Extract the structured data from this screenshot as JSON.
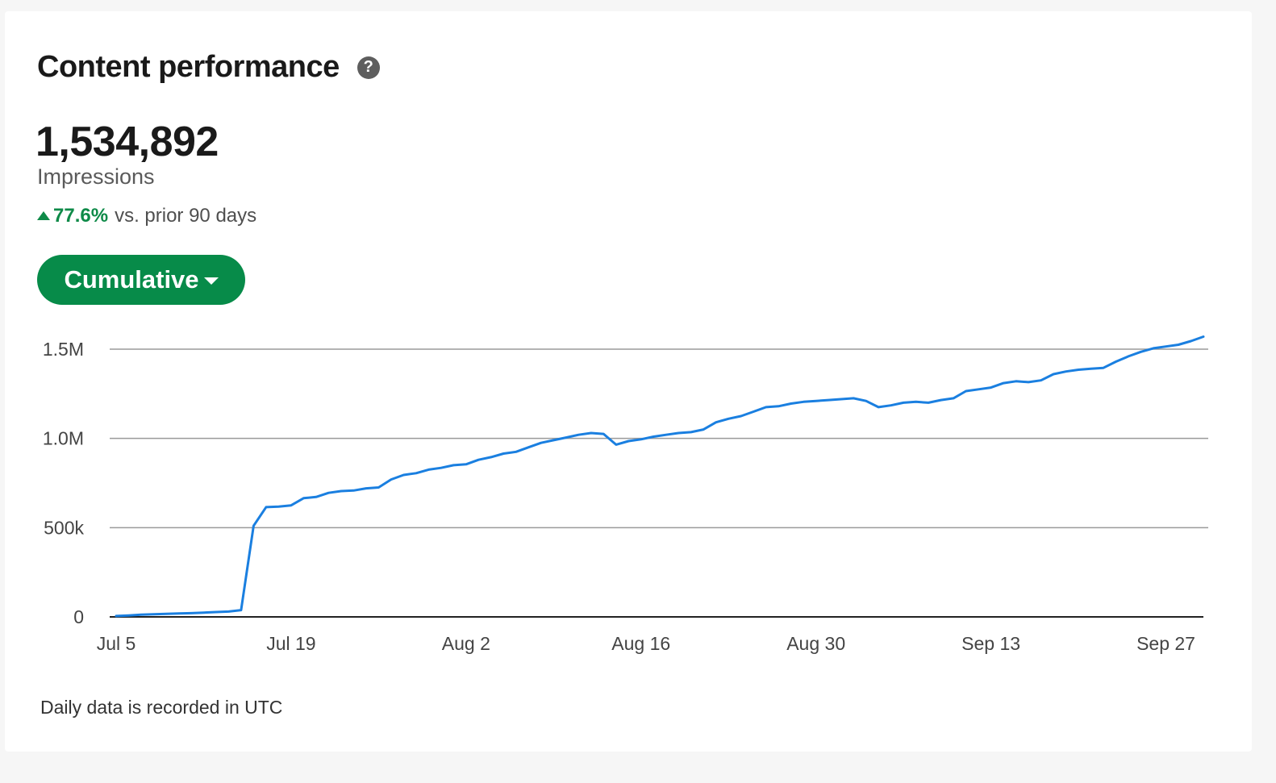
{
  "header": {
    "title": "Content performance",
    "help_glyph": "?"
  },
  "metric": {
    "value": "1,534,892",
    "label": "Impressions",
    "change_value": "77.6%",
    "change_text": "vs. prior 90 days"
  },
  "dropdown": {
    "label": "Cumulative"
  },
  "footnote": "Daily data is recorded in UTC",
  "colors": {
    "accent": "#078b49",
    "positive": "#0e8a48",
    "line": "#1a7fe0",
    "grid": "#9a9a9a"
  },
  "chart_data": {
    "type": "line",
    "title": "",
    "xlabel": "",
    "ylabel": "",
    "ylim": [
      0,
      1500000
    ],
    "yticks": [
      {
        "value": 0,
        "label": "0"
      },
      {
        "value": 500000,
        "label": "500k"
      },
      {
        "value": 1000000,
        "label": "1.0M"
      },
      {
        "value": 1500000,
        "label": "1.5M"
      }
    ],
    "xticks": [
      {
        "day": 0,
        "label": "Jul 5"
      },
      {
        "day": 14,
        "label": "Jul 19"
      },
      {
        "day": 28,
        "label": "Aug 2"
      },
      {
        "day": 42,
        "label": "Aug 16"
      },
      {
        "day": 56,
        "label": "Aug 30"
      },
      {
        "day": 70,
        "label": "Sep 13"
      },
      {
        "day": 84,
        "label": "Sep 27"
      }
    ],
    "grid": true,
    "legend": "none",
    "series": [
      {
        "x": [
          0,
          1,
          2,
          3,
          4,
          5,
          6,
          7,
          8,
          9,
          10,
          11,
          12,
          13,
          14,
          15,
          16,
          17,
          18,
          19,
          20,
          21,
          22,
          23,
          24,
          25,
          26,
          27,
          28,
          29,
          30,
          31,
          32,
          33,
          34,
          35,
          36,
          37,
          38,
          39,
          40,
          41,
          42,
          43,
          44,
          45,
          46,
          47,
          48,
          49,
          50,
          51,
          52,
          53,
          54,
          55,
          56,
          57,
          58,
          59,
          60,
          61,
          62,
          63,
          64,
          65,
          66,
          67,
          68,
          69,
          70,
          71,
          72,
          73,
          74,
          75,
          76,
          77,
          78,
          79,
          80,
          81,
          82,
          83,
          84,
          85,
          86,
          87
        ],
        "y": [
          5000,
          8000,
          12000,
          15000,
          17000,
          19000,
          21000,
          24000,
          27000,
          30000,
          38000,
          510000,
          615000,
          618000,
          625000,
          665000,
          672000,
          695000,
          705000,
          708000,
          720000,
          725000,
          770000,
          795000,
          805000,
          825000,
          835000,
          850000,
          855000,
          880000,
          895000,
          915000,
          925000,
          950000,
          975000,
          990000,
          1005000,
          1020000,
          1030000,
          1025000,
          965000,
          985000,
          995000,
          1010000,
          1020000,
          1030000,
          1035000,
          1050000,
          1090000,
          1110000,
          1125000,
          1150000,
          1175000,
          1180000,
          1195000,
          1205000,
          1210000,
          1215000,
          1220000,
          1225000,
          1210000,
          1175000,
          1185000,
          1200000,
          1205000,
          1200000,
          1215000,
          1225000,
          1265000,
          1275000,
          1285000,
          1310000,
          1320000,
          1315000,
          1325000,
          1360000,
          1375000,
          1385000,
          1390000,
          1395000,
          1430000,
          1460000,
          1485000,
          1505000,
          1515000,
          1525000,
          1545000,
          1570000
        ]
      }
    ]
  }
}
